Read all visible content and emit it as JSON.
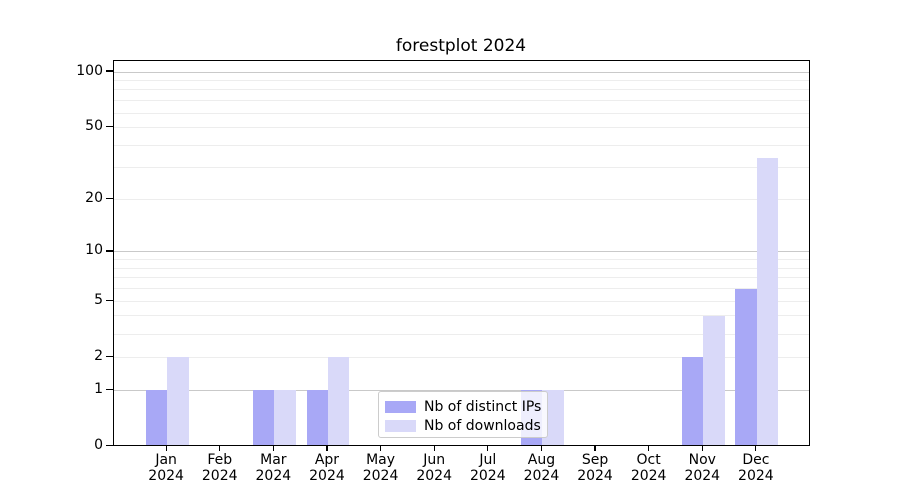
{
  "chart_data": {
    "type": "bar",
    "title": "forestplot 2024",
    "categories": [
      "Jan\n2024",
      "Feb\n2024",
      "Mar\n2024",
      "Apr\n2024",
      "May\n2024",
      "Jun\n2024",
      "Jul\n2024",
      "Aug\n2024",
      "Sep\n2024",
      "Oct\n2024",
      "Nov\n2024",
      "Dec\n2024"
    ],
    "series": [
      {
        "name": "Nb of distinct IPs",
        "color": "#a8a8f6",
        "values": [
          1,
          0,
          1,
          1,
          0,
          0,
          0,
          1,
          0,
          0,
          2,
          6
        ]
      },
      {
        "name": "Nb of downloads",
        "color": "#d9d9f9",
        "values": [
          2,
          0,
          1,
          2,
          0,
          0,
          0,
          1,
          0,
          0,
          4,
          34
        ]
      }
    ],
    "y_scale": "log1p",
    "y_ticks": [
      0,
      1,
      2,
      5,
      10,
      20,
      50,
      100
    ],
    "y_tick_labels": [
      "0",
      "1",
      "2",
      "5",
      "10",
      "20",
      "50",
      "100"
    ],
    "y_major_gridlines": [
      1,
      10,
      100
    ],
    "y_minor_gridlines": [
      2,
      3,
      4,
      5,
      6,
      7,
      8,
      9,
      20,
      30,
      40,
      50,
      60,
      70,
      80,
      90
    ],
    "ylim": [
      0,
      115
    ],
    "grid": true,
    "legend_position": "lower center"
  },
  "colors": {
    "background": "#ffffff",
    "spine": "#000000",
    "major_grid": "#c9c9c9",
    "minor_grid": "#ededed",
    "tick": "#000000",
    "legend_border": "#cccccc"
  }
}
